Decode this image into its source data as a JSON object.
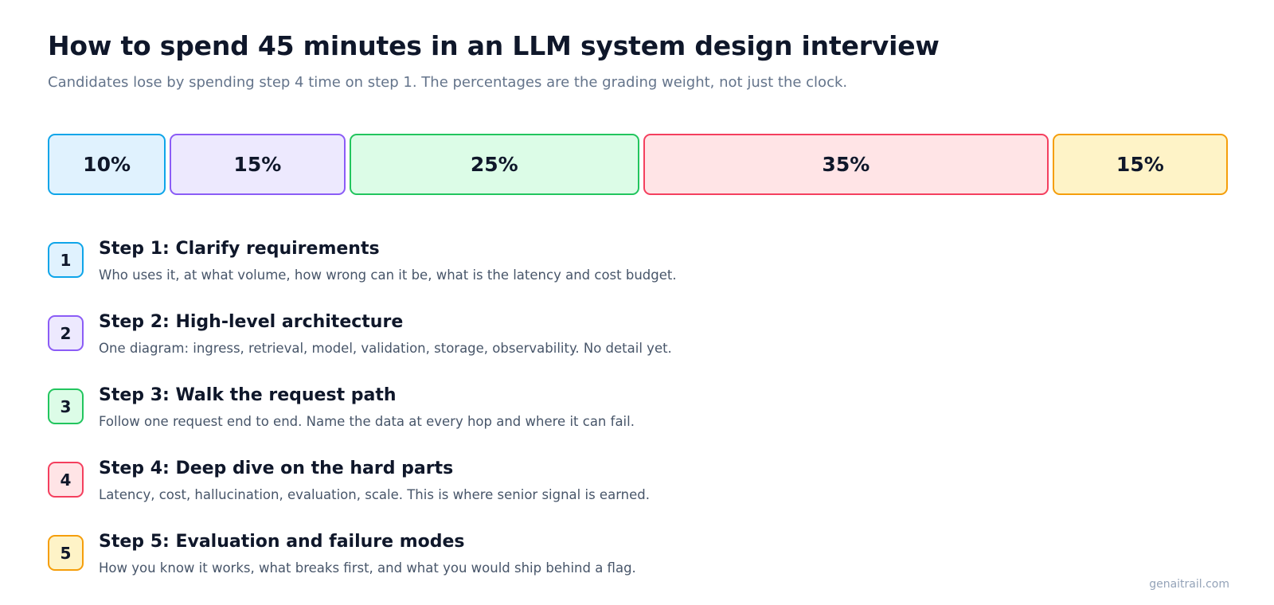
{
  "header": {
    "title": "How to spend 45 minutes in an LLM system design interview",
    "subtitle": "Candidates lose by spending step 4 time on step 1. The percentages are the grading weight, not just the clock."
  },
  "segments": [
    {
      "label": "10%",
      "weight": 10,
      "border": "#0ea5e9",
      "fill": "#e0f2fe"
    },
    {
      "label": "15%",
      "weight": 15,
      "border": "#8b5cf6",
      "fill": "#ede9fe"
    },
    {
      "label": "25%",
      "weight": 25,
      "border": "#22c55e",
      "fill": "#dcfce7"
    },
    {
      "label": "35%",
      "weight": 35,
      "border": "#f43f5e",
      "fill": "#ffe4e6"
    },
    {
      "label": "15%",
      "weight": 15,
      "border": "#f59e0b",
      "fill": "#fef3c7"
    }
  ],
  "steps": [
    {
      "number": "1",
      "title": "Step 1: Clarify requirements",
      "description": "Who uses it, at what volume, how wrong can it be, what is the latency and cost budget."
    },
    {
      "number": "2",
      "title": "Step 2: High-level architecture",
      "description": "One diagram: ingress, retrieval, model, validation, storage, observability. No detail yet."
    },
    {
      "number": "3",
      "title": "Step 3: Walk the request path",
      "description": "Follow one request end to end. Name the data at every hop and where it can fail."
    },
    {
      "number": "4",
      "title": "Step 4: Deep dive on the hard parts",
      "description": "Latency, cost, hallucination, evaluation, scale. This is where senior signal is earned."
    },
    {
      "number": "5",
      "title": "Step 5: Evaluation and failure modes",
      "description": "How you know it works, what breaks first, and what you would ship behind a flag."
    }
  ],
  "footer": {
    "credit": "genaitrail.com"
  }
}
